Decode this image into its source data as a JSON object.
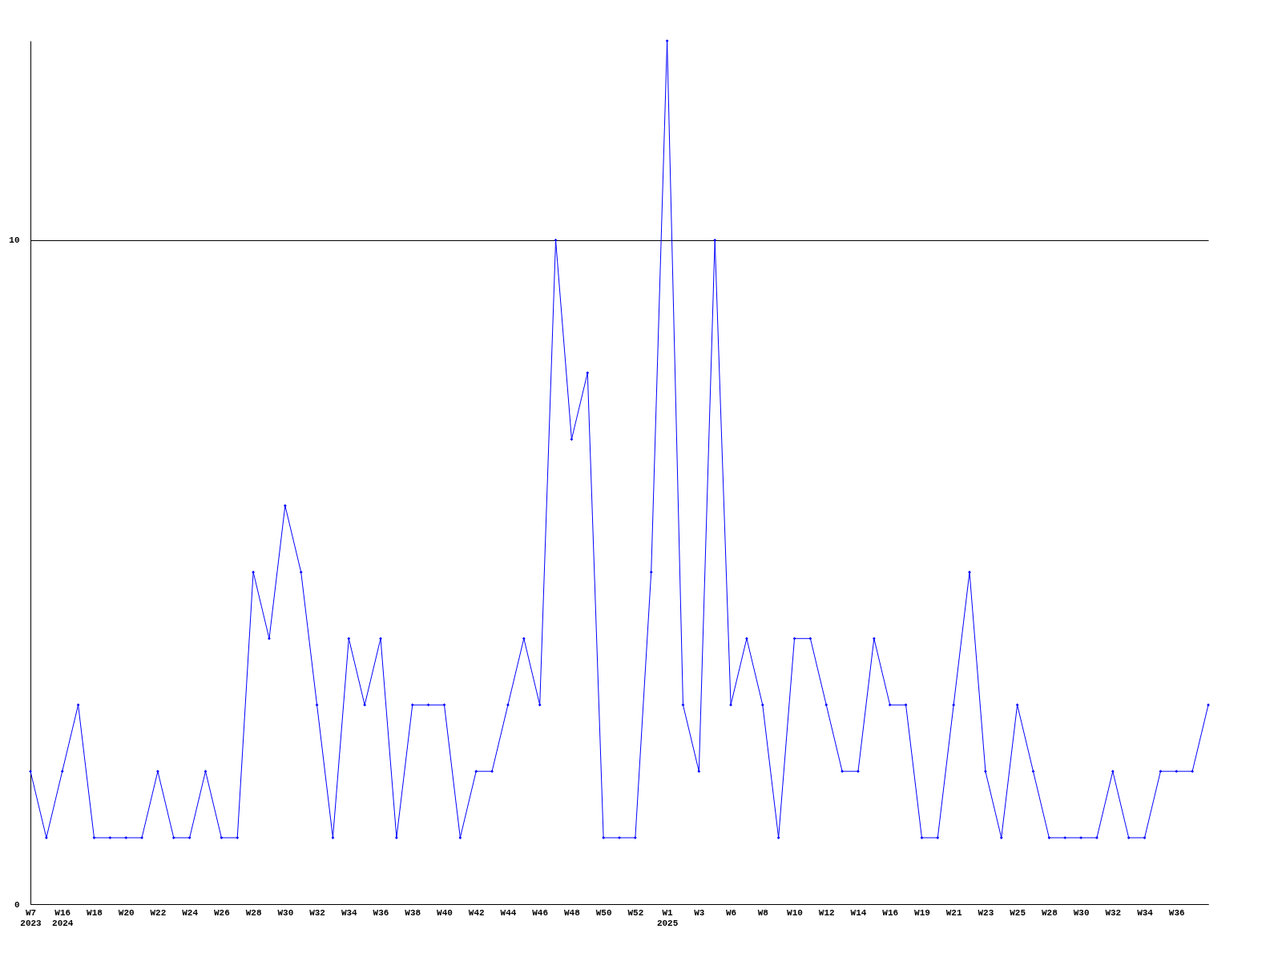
{
  "chart_data": {
    "type": "line",
    "categories": [
      "W7\n2023",
      null,
      "W16\n2024",
      null,
      "W18",
      null,
      "W20",
      null,
      "W22",
      null,
      "W24",
      null,
      "W26",
      null,
      "W28",
      null,
      "W30",
      null,
      "W32",
      null,
      "W34",
      null,
      "W36",
      null,
      "W38",
      null,
      "W40",
      null,
      "W42",
      null,
      "W44",
      null,
      "W46",
      null,
      "W48",
      null,
      "W50",
      null,
      "W52",
      null,
      "W1\n2025",
      null,
      "W3",
      null,
      "W6",
      null,
      "W8",
      null,
      "W10",
      null,
      "W12",
      null,
      "W14",
      null,
      "W16",
      null,
      "W19",
      null,
      "W21",
      null,
      "W23",
      null,
      "W25",
      null,
      "W28",
      null,
      "W30",
      null,
      "W32",
      null,
      "W34",
      null,
      "W36",
      null,
      null
    ],
    "series": [
      {
        "color": "#0000ff",
        "values": [
          2,
          1,
          2,
          3,
          1,
          1,
          1,
          1,
          2,
          1,
          1,
          2,
          1,
          1,
          5,
          4,
          6,
          5,
          3,
          1,
          4,
          3,
          4,
          1,
          3,
          3,
          3,
          1,
          2,
          2,
          3,
          4,
          3,
          10,
          7,
          8,
          1,
          1,
          1,
          5,
          13,
          3,
          2,
          10,
          3,
          4,
          3,
          1,
          4,
          4,
          3,
          2,
          2,
          4,
          3,
          3,
          1,
          1,
          3,
          5,
          2,
          1,
          3,
          2,
          1,
          1,
          1,
          1,
          2,
          1,
          1,
          2,
          2,
          2,
          3
        ]
      }
    ],
    "ylim": [
      0,
      13
    ],
    "yticks": [
      0,
      10
    ],
    "grid": "y",
    "marker": "diamond",
    "line_style": "solid"
  }
}
